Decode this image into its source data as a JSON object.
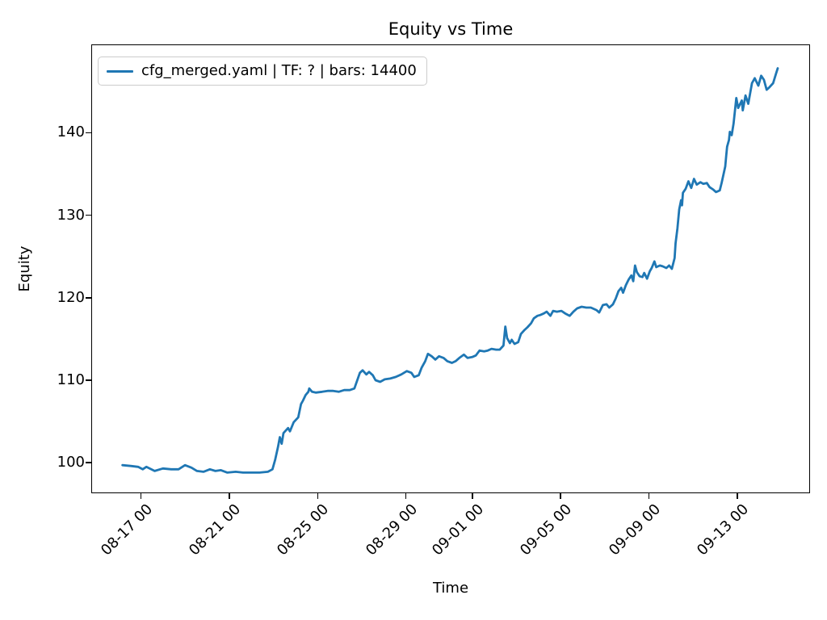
{
  "chart_data": {
    "type": "line",
    "title": "Equity vs Time",
    "xlabel": "Time",
    "ylabel": "Equity",
    "legend_entries": [
      "cfg_merged.yaml | TF: ? | bars: 14400"
    ],
    "legend_position": "upper left",
    "line_color": "#1f77b4",
    "grid": false,
    "x_tick_labels": [
      "08-17 00",
      "08-21 00",
      "08-25 00",
      "08-29 00",
      "09-01 00",
      "09-05 00",
      "09-09 00",
      "09-13 00"
    ],
    "y_tick_values": [
      100,
      110,
      120,
      130,
      140
    ],
    "xlim": [
      "08-14 18",
      "09-16 07"
    ],
    "ylim": [
      96.3,
      150.7
    ],
    "series": [
      {
        "name": "cfg_merged.yaml | TF: ? | bars: 14400",
        "points": [
          [
            "08-16 03",
            99.8
          ],
          [
            "08-16 12",
            99.7
          ],
          [
            "08-16 20",
            99.6
          ],
          [
            "08-17 01",
            99.3
          ],
          [
            "08-17 05",
            99.6
          ],
          [
            "08-17 14",
            99.1
          ],
          [
            "08-17 23",
            99.4
          ],
          [
            "08-18 08",
            99.3
          ],
          [
            "08-18 16",
            99.3
          ],
          [
            "08-18 23",
            99.8
          ],
          [
            "08-19 06",
            99.5
          ],
          [
            "08-19 12",
            99.1
          ],
          [
            "08-19 19",
            99.0
          ],
          [
            "08-20 02",
            99.3
          ],
          [
            "08-20 08",
            99.1
          ],
          [
            "08-20 14",
            99.2
          ],
          [
            "08-20 21",
            98.9
          ],
          [
            "08-21 06",
            99.0
          ],
          [
            "08-21 14",
            98.9
          ],
          [
            "08-21 23",
            98.9
          ],
          [
            "08-22 08",
            98.9
          ],
          [
            "08-22 17",
            99.0
          ],
          [
            "08-22 22",
            99.3
          ],
          [
            "08-23 01",
            100.5
          ],
          [
            "08-23 04",
            102.0
          ],
          [
            "08-23 06",
            103.2
          ],
          [
            "08-23 08",
            102.4
          ],
          [
            "08-23 10",
            103.7
          ],
          [
            "08-23 15",
            104.3
          ],
          [
            "08-23 17",
            103.9
          ],
          [
            "08-23 21",
            105.0
          ],
          [
            "08-24 02",
            105.6
          ],
          [
            "08-24 05",
            107.2
          ],
          [
            "08-24 07",
            107.6
          ],
          [
            "08-24 10",
            108.3
          ],
          [
            "08-24 13",
            108.7
          ],
          [
            "08-24 14",
            109.1
          ],
          [
            "08-24 17",
            108.7
          ],
          [
            "08-24 21",
            108.6
          ],
          [
            "08-25 04",
            108.7
          ],
          [
            "08-25 10",
            108.8
          ],
          [
            "08-25 16",
            108.8
          ],
          [
            "08-25 22",
            108.7
          ],
          [
            "08-26 04",
            108.9
          ],
          [
            "08-26 10",
            108.9
          ],
          [
            "08-26 15",
            109.1
          ],
          [
            "08-26 21",
            111.0
          ],
          [
            "08-27 00",
            111.3
          ],
          [
            "08-27 04",
            110.8
          ],
          [
            "08-27 07",
            111.1
          ],
          [
            "08-27 11",
            110.7
          ],
          [
            "08-27 14",
            110.1
          ],
          [
            "08-27 19",
            109.9
          ],
          [
            "08-28 00",
            110.2
          ],
          [
            "08-28 06",
            110.3
          ],
          [
            "08-28 12",
            110.5
          ],
          [
            "08-28 18",
            110.8
          ],
          [
            "08-29 00",
            111.2
          ],
          [
            "08-29 05",
            111.0
          ],
          [
            "08-29 08",
            110.5
          ],
          [
            "08-29 13",
            110.7
          ],
          [
            "08-29 16",
            111.6
          ],
          [
            "08-29 20",
            112.4
          ],
          [
            "08-29 23",
            113.3
          ],
          [
            "08-30 03",
            113.0
          ],
          [
            "08-30 07",
            112.6
          ],
          [
            "08-30 11",
            113.0
          ],
          [
            "08-30 16",
            112.8
          ],
          [
            "08-30 20",
            112.4
          ],
          [
            "08-31 01",
            112.2
          ],
          [
            "08-31 05",
            112.4
          ],
          [
            "08-31 09",
            112.8
          ],
          [
            "08-31 14",
            113.2
          ],
          [
            "08-31 18",
            112.8
          ],
          [
            "08-31 23",
            112.9
          ],
          [
            "09-01 03",
            113.1
          ],
          [
            "09-01 07",
            113.7
          ],
          [
            "09-01 12",
            113.6
          ],
          [
            "09-01 16",
            113.7
          ],
          [
            "09-01 20",
            113.9
          ],
          [
            "09-02 01",
            113.8
          ],
          [
            "09-02 05",
            113.8
          ],
          [
            "09-02 09",
            114.3
          ],
          [
            "09-02 11",
            116.6
          ],
          [
            "09-02 13",
            115.2
          ],
          [
            "09-02 16",
            114.6
          ],
          [
            "09-02 18",
            115.0
          ],
          [
            "09-02 21",
            114.5
          ],
          [
            "09-03 01",
            114.7
          ],
          [
            "09-03 04",
            115.7
          ],
          [
            "09-03 08",
            116.2
          ],
          [
            "09-03 11",
            116.5
          ],
          [
            "09-03 15",
            117.0
          ],
          [
            "09-03 18",
            117.6
          ],
          [
            "09-03 22",
            117.9
          ],
          [
            "09-04 01",
            118.0
          ],
          [
            "09-04 05",
            118.2
          ],
          [
            "09-04 08",
            118.4
          ],
          [
            "09-04 12",
            117.9
          ],
          [
            "09-04 15",
            118.5
          ],
          [
            "09-04 19",
            118.4
          ],
          [
            "09-05 00",
            118.5
          ],
          [
            "09-05 04",
            118.2
          ],
          [
            "09-05 09",
            117.9
          ],
          [
            "09-05 13",
            118.4
          ],
          [
            "09-05 17",
            118.8
          ],
          [
            "09-05 22",
            119.0
          ],
          [
            "09-06 03",
            118.9
          ],
          [
            "09-06 08",
            118.9
          ],
          [
            "09-06 14",
            118.6
          ],
          [
            "09-06 17",
            118.3
          ],
          [
            "09-06 21",
            119.2
          ],
          [
            "09-07 01",
            119.3
          ],
          [
            "09-07 04",
            118.9
          ],
          [
            "09-07 08",
            119.3
          ],
          [
            "09-07 11",
            120.0
          ],
          [
            "09-07 14",
            120.9
          ],
          [
            "09-07 17",
            121.3
          ],
          [
            "09-07 19",
            120.7
          ],
          [
            "09-07 22",
            121.6
          ],
          [
            "09-08 01",
            122.3
          ],
          [
            "09-08 04",
            122.8
          ],
          [
            "09-08 06",
            122.1
          ],
          [
            "09-08 08",
            124.0
          ],
          [
            "09-08 10",
            123.2
          ],
          [
            "09-08 13",
            122.7
          ],
          [
            "09-08 16",
            122.6
          ],
          [
            "09-08 18",
            123.1
          ],
          [
            "09-08 21",
            122.4
          ],
          [
            "09-09 00",
            123.3
          ],
          [
            "09-09 02",
            123.7
          ],
          [
            "09-09 05",
            124.5
          ],
          [
            "09-09 07",
            123.8
          ],
          [
            "09-09 11",
            124.0
          ],
          [
            "09-09 14",
            123.9
          ],
          [
            "09-09 18",
            123.7
          ],
          [
            "09-09 21",
            124.0
          ],
          [
            "09-10 00",
            123.6
          ],
          [
            "09-10 03",
            124.9
          ],
          [
            "09-10 04",
            126.7
          ],
          [
            "09-10 06",
            128.5
          ],
          [
            "09-10 08",
            130.8
          ],
          [
            "09-10 10",
            131.9
          ],
          [
            "09-10 11",
            131.3
          ],
          [
            "09-10 12",
            132.8
          ],
          [
            "09-10 15",
            133.3
          ],
          [
            "09-10 18",
            134.2
          ],
          [
            "09-10 21",
            133.4
          ],
          [
            "09-11 00",
            134.5
          ],
          [
            "09-11 03",
            133.8
          ],
          [
            "09-11 07",
            134.1
          ],
          [
            "09-11 10",
            133.9
          ],
          [
            "09-11 14",
            134.0
          ],
          [
            "09-11 17",
            133.5
          ],
          [
            "09-11 21",
            133.2
          ],
          [
            "09-12 00",
            132.9
          ],
          [
            "09-12 04",
            133.1
          ],
          [
            "09-12 06",
            134.0
          ],
          [
            "09-12 10",
            136.0
          ],
          [
            "09-12 11",
            137.3
          ],
          [
            "09-12 12",
            138.4
          ],
          [
            "09-12 14",
            139.2
          ],
          [
            "09-12 15",
            140.2
          ],
          [
            "09-12 17",
            139.8
          ],
          [
            "09-12 19",
            141.2
          ],
          [
            "09-12 20",
            142.2
          ],
          [
            "09-12 22",
            144.3
          ],
          [
            "09-13 00",
            143.1
          ],
          [
            "09-13 04",
            144.0
          ],
          [
            "09-13 05",
            142.8
          ],
          [
            "09-13 08",
            144.6
          ],
          [
            "09-13 11",
            143.6
          ],
          [
            "09-13 15",
            146.1
          ],
          [
            "09-13 18",
            146.7
          ],
          [
            "09-13 22",
            145.8
          ],
          [
            "09-14 01",
            147.0
          ],
          [
            "09-14 04",
            146.5
          ],
          [
            "09-14 07",
            145.3
          ],
          [
            "09-14 10",
            145.6
          ],
          [
            "09-14 14",
            146.1
          ],
          [
            "09-14 17",
            147.2
          ],
          [
            "09-14 19",
            147.9
          ]
        ]
      }
    ]
  }
}
